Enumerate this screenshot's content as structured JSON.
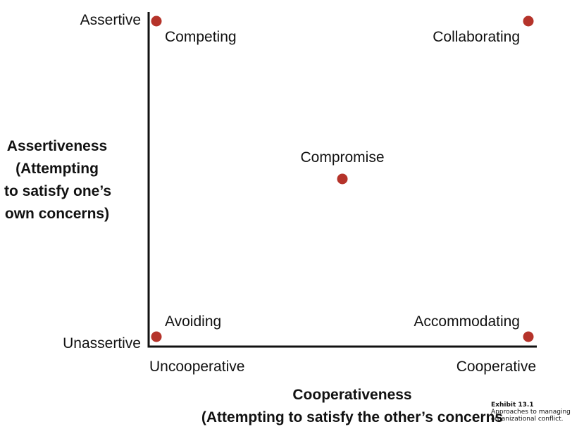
{
  "chart_data": {
    "type": "scatter",
    "title": "",
    "xlabel": "Cooperativeness\n(Attempting to satisfy the other’s concerns",
    "ylabel": "Assertiveness\n(Attempting\nto satisfy one’s\nown concerns)",
    "x_ticks": [
      "Uncooperative",
      "Cooperative"
    ],
    "y_ticks": [
      "Assertive",
      "Unassertive"
    ],
    "xlim": [
      0,
      1
    ],
    "ylim": [
      0,
      1
    ],
    "grid": false,
    "points": [
      {
        "label": "Competing",
        "x": 0,
        "y": 1
      },
      {
        "label": "Collaborating",
        "x": 1,
        "y": 1
      },
      {
        "label": "Compromise",
        "x": 0.5,
        "y": 0.5
      },
      {
        "label": "Avoiding",
        "x": 0,
        "y": 0
      },
      {
        "label": "Accommodating",
        "x": 1,
        "y": 0
      }
    ],
    "point_color": "#b5332a"
  },
  "caption": {
    "exhibit": "Exhibit 13.1",
    "text_line1": "Approaches to managing",
    "text_line2": "organizational conflict."
  }
}
